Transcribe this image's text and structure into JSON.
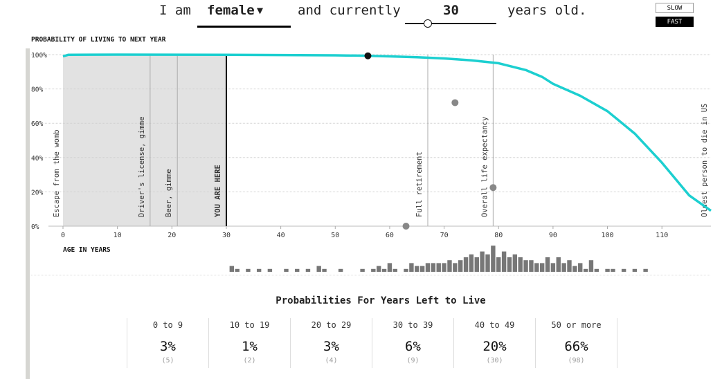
{
  "header": {
    "prefix": "I am",
    "sex": "female",
    "caret": "▼",
    "middle": "and currently",
    "age": "30",
    "suffix": "years old."
  },
  "speed": {
    "slow": "SLOW",
    "fast": "FAST",
    "selected": "FAST"
  },
  "slider": {
    "age_fraction": 0.25
  },
  "chart_data": {
    "type": "line",
    "title": "PROBABILITY OF LIVING TO NEXT YEAR",
    "xlabel": "AGE IN YEARS",
    "xlim": [
      0,
      119
    ],
    "ylim": [
      0,
      1
    ],
    "x_ticks": [
      0,
      10,
      20,
      30,
      40,
      50,
      60,
      70,
      80,
      90,
      100,
      110
    ],
    "y_ticks": [
      {
        "v": 0,
        "label": "0%"
      },
      {
        "v": 0.2,
        "label": "20%"
      },
      {
        "v": 0.4,
        "label": "40%"
      },
      {
        "v": 0.6,
        "label": "60%"
      },
      {
        "v": 0.8,
        "label": "80%"
      },
      {
        "v": 1.0,
        "label": "100%"
      }
    ],
    "grid": true,
    "series": [
      {
        "color": "#1ccfd0",
        "x": [
          0,
          1,
          10,
          30,
          50,
          55,
          60,
          65,
          70,
          75,
          80,
          85,
          88,
          90,
          95,
          100,
          105,
          110,
          115,
          119
        ],
        "y": [
          0.99,
          0.999,
          0.9998,
          0.999,
          0.996,
          0.994,
          0.99,
          0.985,
          0.978,
          0.967,
          0.95,
          0.91,
          0.87,
          0.83,
          0.76,
          0.67,
          0.54,
          0.37,
          0.18,
          0.09
        ]
      }
    ],
    "shaded_region": {
      "from": 0,
      "to": 30,
      "color": "#e2e2e2"
    },
    "markers": [
      {
        "x": 0,
        "label": "Escape from the womb",
        "bold": false
      },
      {
        "x": 16,
        "label": "Driver's license, gimme",
        "bold": false
      },
      {
        "x": 21,
        "label": "Beer, gimme",
        "bold": false
      },
      {
        "x": 30,
        "label": "YOU ARE HERE",
        "bold": true
      },
      {
        "x": 67,
        "label": "Full retirement",
        "bold": false
      },
      {
        "x": 79,
        "label": "Overall life expectancy",
        "bold": false
      },
      {
        "x": 119,
        "label": "Oldest person to die in US",
        "bold": false
      }
    ],
    "balls": [
      {
        "x": 56,
        "y": 0.993,
        "color": "#111"
      },
      {
        "x": 63,
        "y": 0.0,
        "color": "#888"
      },
      {
        "x": 72,
        "y": 0.72,
        "color": "#888"
      },
      {
        "x": 79,
        "y": 0.225,
        "color": "#888"
      }
    ],
    "histogram": {
      "color": "#777",
      "ages": [
        31,
        32,
        34,
        36,
        38,
        41,
        43,
        45,
        47,
        48,
        51,
        55,
        57,
        58,
        59,
        60,
        61,
        63,
        64,
        65,
        66,
        67,
        68,
        69,
        70,
        71,
        72,
        73,
        74,
        75,
        76,
        77,
        78,
        79,
        80,
        81,
        82,
        83,
        84,
        85,
        86,
        87,
        88,
        89,
        90,
        91,
        92,
        93,
        94,
        95,
        96,
        97,
        98,
        100,
        101,
        103,
        105,
        107
      ],
      "counts": [
        2,
        1,
        1,
        1,
        1,
        1,
        1,
        1,
        2,
        1,
        1,
        1,
        1,
        2,
        1,
        3,
        1,
        1,
        3,
        2,
        2,
        3,
        3,
        3,
        3,
        4,
        3,
        4,
        5,
        6,
        5,
        7,
        6,
        9,
        5,
        7,
        5,
        6,
        5,
        4,
        4,
        3,
        3,
        5,
        3,
        5,
        3,
        4,
        2,
        3,
        1,
        4,
        1,
        1,
        1,
        1,
        1,
        1
      ]
    }
  },
  "probabilities": {
    "title": "Probabilities For Years Left to Live",
    "columns": [
      {
        "range": "0 to 9",
        "pct": "3%",
        "count": "(5)"
      },
      {
        "range": "10 to 19",
        "pct": "1%",
        "count": "(2)"
      },
      {
        "range": "20 to 29",
        "pct": "3%",
        "count": "(4)"
      },
      {
        "range": "30 to 39",
        "pct": "6%",
        "count": "(9)"
      },
      {
        "range": "40 to 49",
        "pct": "20%",
        "count": "(30)"
      },
      {
        "range": "50 or more",
        "pct": "66%",
        "count": "(98)"
      }
    ]
  }
}
